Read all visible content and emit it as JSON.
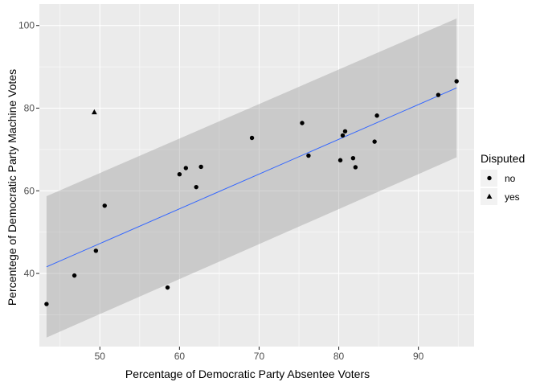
{
  "chart_data": {
    "type": "scatter",
    "title": "",
    "xlabel": "Percentage of Democratic Party Absentee Voters",
    "ylabel": "Percentege of Democratic Party Machine Votes",
    "xlim": [
      42.4,
      97.0
    ],
    "ylim": [
      22.3,
      105.2
    ],
    "x_ticks": [
      50,
      60,
      70,
      80,
      90
    ],
    "y_ticks": [
      40,
      60,
      80,
      100
    ],
    "grid": true,
    "legend": {
      "title": "Disputed",
      "position": "right",
      "entries": [
        {
          "label": "no",
          "shape": "circle"
        },
        {
          "label": "yes",
          "shape": "triangle"
        }
      ]
    },
    "series": [
      {
        "name": "no",
        "shape": "circle",
        "color": "#000000",
        "points": [
          {
            "x": 43.3,
            "y": 32.6
          },
          {
            "x": 46.8,
            "y": 39.5
          },
          {
            "x": 49.5,
            "y": 45.5
          },
          {
            "x": 50.6,
            "y": 56.4
          },
          {
            "x": 58.5,
            "y": 36.6
          },
          {
            "x": 60.0,
            "y": 64.0
          },
          {
            "x": 60.8,
            "y": 65.5
          },
          {
            "x": 62.1,
            "y": 60.9
          },
          {
            "x": 62.7,
            "y": 65.8
          },
          {
            "x": 69.1,
            "y": 72.8
          },
          {
            "x": 75.4,
            "y": 76.4
          },
          {
            "x": 76.2,
            "y": 68.5
          },
          {
            "x": 80.2,
            "y": 67.4
          },
          {
            "x": 80.5,
            "y": 73.4
          },
          {
            "x": 80.8,
            "y": 74.4
          },
          {
            "x": 81.8,
            "y": 67.9
          },
          {
            "x": 82.1,
            "y": 65.7
          },
          {
            "x": 84.5,
            "y": 71.9
          },
          {
            "x": 84.8,
            "y": 78.2
          },
          {
            "x": 92.5,
            "y": 83.2
          },
          {
            "x": 94.8,
            "y": 86.5
          }
        ]
      },
      {
        "name": "yes",
        "shape": "triangle",
        "color": "#000000",
        "points": [
          {
            "x": 49.3,
            "y": 79.0
          }
        ]
      }
    ],
    "regression": {
      "type": "linear",
      "color": "#3366FF",
      "x_range": [
        43.3,
        94.8
      ],
      "line": [
        [
          43.3,
          41.6
        ],
        [
          94.8,
          84.9
        ]
      ],
      "prediction_band": {
        "lower": [
          [
            43.3,
            24.5
          ],
          [
            94.8,
            68.1
          ]
        ],
        "upper": [
          [
            43.3,
            58.7
          ],
          [
            94.8,
            101.7
          ]
        ],
        "fill": "#999999"
      }
    }
  }
}
